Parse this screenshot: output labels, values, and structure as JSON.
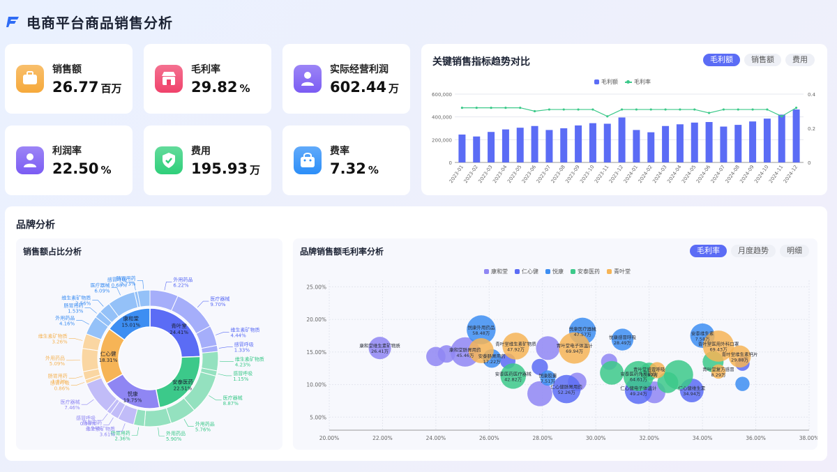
{
  "header": {
    "title": "电商平台商品销售分析"
  },
  "kpis": [
    {
      "label": "销售额",
      "value": "26.77",
      "unit": "百万",
      "icon": "briefcase-icon",
      "color": "#f6a93b"
    },
    {
      "label": "毛利率",
      "value": "29.82",
      "unit": "%",
      "icon": "shop-icon",
      "color": "#f0426b"
    },
    {
      "label": "实际经营利润",
      "value": "602.44",
      "unit": "万",
      "icon": "user-icon",
      "color": "#7b5cf3"
    },
    {
      "label": "利润率",
      "value": "22.50",
      "unit": "%",
      "icon": "user-icon",
      "color": "#7b5cf3"
    },
    {
      "label": "费用",
      "value": "195.93",
      "unit": "万",
      "icon": "shield-icon",
      "color": "#2fcf7a"
    },
    {
      "label": "费率",
      "value": "7.32",
      "unit": "%",
      "icon": "bag-icon",
      "color": "#2c8ef8"
    }
  ],
  "trend": {
    "title": "关键销售指标趋势对比",
    "tabs": [
      "毛利额",
      "销售额",
      "费用"
    ],
    "active_tab": "毛利额",
    "legend": [
      "毛利额",
      "毛利率"
    ]
  },
  "brand": {
    "section_title": "品牌分析",
    "pie_title": "销售额占比分析",
    "scatter_title": "品牌销售额毛利率分析",
    "scatter_tabs": [
      "毛利率",
      "月度趋势",
      "明细"
    ],
    "scatter_active_tab": "毛利率"
  },
  "chart_data": [
    {
      "type": "bar",
      "categories": [
        "2023-01",
        "2023-02",
        "2023-03",
        "2023-04",
        "2023-05",
        "2023-06",
        "2023-07",
        "2023-08",
        "2023-09",
        "2023-10",
        "2023-11",
        "2023-12",
        "2024-01",
        "2024-02",
        "2024-03",
        "2024-04",
        "2024-05",
        "2024-06",
        "2024-07",
        "2024-08",
        "2024-09",
        "2024-10",
        "2024-11",
        "2024-12"
      ],
      "series": [
        {
          "name": "毛利额",
          "type": "bar",
          "axis": "left",
          "color": "#5b6cf5",
          "values": [
            245000,
            228000,
            268000,
            290000,
            305000,
            320000,
            285000,
            300000,
            325000,
            345000,
            340000,
            395000,
            285000,
            265000,
            320000,
            335000,
            350000,
            355000,
            315000,
            330000,
            360000,
            385000,
            420000,
            465000
          ]
        },
        {
          "name": "毛利率",
          "type": "line",
          "axis": "right",
          "color": "#3cc98a",
          "values": [
            0.32,
            0.32,
            0.32,
            0.32,
            0.32,
            0.3,
            0.31,
            0.31,
            0.31,
            0.31,
            0.27,
            0.31,
            0.31,
            0.31,
            0.31,
            0.31,
            0.31,
            0.29,
            0.31,
            0.31,
            0.31,
            0.31,
            0.27,
            0.32
          ]
        }
      ],
      "yticks_left": [
        "0",
        "200,000",
        "400,000",
        "600,000"
      ],
      "yticks_right": [
        "0",
        "0.2",
        "0.4"
      ],
      "ylim_left": [
        0,
        600000
      ],
      "ylim_right": [
        0,
        0.4
      ],
      "grid": true,
      "legend": "top-center"
    },
    {
      "type": "pie",
      "inner_ring": [
        {
          "name": "青叶堂",
          "value": 24.41,
          "color": "#5b6cf5"
        },
        {
          "name": "安泰医药",
          "value": 22.51,
          "color": "#3cc98a"
        },
        {
          "name": "悦康",
          "value": 19.75,
          "color": "#8f86f3"
        },
        {
          "name": "仁心健",
          "value": 18.31,
          "color": "#f6b456"
        },
        {
          "name": "康和堂",
          "value": 15.01,
          "color": "#3d8ef2"
        }
      ],
      "outer_ring": [
        {
          "brand": "青叶堂",
          "name": "外用药品",
          "value": 6.22
        },
        {
          "brand": "青叶堂",
          "name": "医疗器械",
          "value": 9.7
        },
        {
          "brand": "青叶堂",
          "name": "维生素矿物质",
          "value": 4.44
        },
        {
          "brand": "青叶堂",
          "name": "感冒呼吸",
          "value": 1.33
        },
        {
          "brand": "安泰医药",
          "name": "维生素矿物质",
          "value": 4.23
        },
        {
          "brand": "安泰医药",
          "name": "感冒呼吸",
          "value": 1.15
        },
        {
          "brand": "安泰医药",
          "name": "医疗器械",
          "value": 8.87
        },
        {
          "brand": "安泰医药",
          "name": "外用药品",
          "value": 5.76
        },
        {
          "brand": "安泰医药",
          "name": "外用药品",
          "value": 5.9
        },
        {
          "brand": "安泰医药",
          "name": "肠胃用药",
          "value": 2.36
        },
        {
          "brand": "悦康",
          "name": "维生素矿物质",
          "value": 3.61
        },
        {
          "brand": "悦康",
          "name": "肠胃用药",
          "value": 1.94
        },
        {
          "brand": "悦康",
          "name": "感冒呼吸",
          "value": 0.98
        },
        {
          "brand": "悦康",
          "name": "医疗器械",
          "value": 7.46
        },
        {
          "brand": "仁心健",
          "name": "感冒呼吸",
          "value": 0.86
        },
        {
          "brand": "仁心健",
          "name": "肠胃用药",
          "value": 1.83
        },
        {
          "brand": "仁心健",
          "name": "外用药品",
          "value": 5.09
        },
        {
          "brand": "仁心健",
          "name": "维生素矿物质",
          "value": 3.26
        },
        {
          "brand": "康和堂",
          "name": "外用药品",
          "value": 4.16
        },
        {
          "brand": "康和堂",
          "name": "肠胃用药",
          "value": 1.53
        },
        {
          "brand": "康和堂",
          "name": "维生素矿物质",
          "value": 2.56
        },
        {
          "brand": "康和堂",
          "name": "医疗器械",
          "value": 6.09
        },
        {
          "brand": "康和堂",
          "name": "感冒呼吸",
          "value": 0.68
        },
        {
          "brand": "康和堂",
          "name": "肠胃用药",
          "value": 2.73
        }
      ]
    },
    {
      "type": "scatter",
      "x_ticks": [
        "20.00%",
        "22.00%",
        "24.00%",
        "26.00%",
        "28.00%",
        "30.00%",
        "32.00%",
        "34.00%",
        "36.00%",
        "38.00%"
      ],
      "y_ticks": [
        "5.00%",
        "10.00%",
        "15.00%",
        "20.00%",
        "25.00%"
      ],
      "xlim": [
        20,
        38
      ],
      "ylim": [
        3,
        26
      ],
      "grid": true,
      "legend": "top-center",
      "series": [
        {
          "name": "康和堂",
          "color": "#8f86f3",
          "points": [
            {
              "x": 21.9,
              "y": 15.6,
              "v": 30,
              "label": "康和堂维生素矿物质",
              "label2": "26.41万"
            },
            {
              "x": 25.1,
              "y": 15.0,
              "v": 60,
              "label": "康和堂肠胃用药",
              "label2": "45.46万"
            },
            {
              "x": 24.0,
              "y": 14.3,
              "v": 20
            },
            {
              "x": 24.4,
              "y": 14.7,
              "v": 15
            },
            {
              "x": 28.2,
              "y": 15.6,
              "v": 35
            },
            {
              "x": 27.9,
              "y": 8.6,
              "v": 40
            },
            {
              "x": 29.3,
              "y": 10.4,
              "v": 18
            },
            {
              "x": 30.5,
              "y": 13.5,
              "v": 12
            },
            {
              "x": 32.2,
              "y": 8.8,
              "v": 28
            }
          ]
        },
        {
          "name": "仁心健",
          "color": "#5b6cf5",
          "points": [
            {
              "x": 28.9,
              "y": 9.3,
              "v": 55,
              "label": "仁心健肠胃用药",
              "label2": "52.26万"
            },
            {
              "x": 31.6,
              "y": 9.1,
              "v": 50,
              "label": "仁心健电子体温计",
              "label2": "49.24万"
            },
            {
              "x": 33.6,
              "y": 9.1,
              "v": 35,
              "label": "仁心健维生素",
              "label2": "34.94万"
            },
            {
              "x": 26.7,
              "y": 13.6,
              "v": 10
            },
            {
              "x": 27.9,
              "y": 12.7,
              "v": 12
            },
            {
              "x": 35.5,
              "y": 13.2,
              "v": 8
            }
          ]
        },
        {
          "name": "悦康",
          "color": "#3d8ef2",
          "points": [
            {
              "x": 25.7,
              "y": 18.4,
              "v": 58,
              "label": "悦康外用药品",
              "label2": "58.48万"
            },
            {
              "x": 29.5,
              "y": 18.2,
              "v": 48,
              "label": "悦康医疗器械",
              "label2": "47.57万"
            },
            {
              "x": 31.0,
              "y": 16.9,
              "v": 28,
              "label": "悦康感冒呼吸",
              "label2": "28.49万"
            },
            {
              "x": 34.0,
              "y": 17.5,
              "v": 38,
              "label": "安泰维生素",
              "label2": "7.58万"
            },
            {
              "x": 26.1,
              "y": 14.0,
              "v": 18,
              "label": "安泰肠胃用药",
              "label2": "17.22万"
            },
            {
              "x": 28.2,
              "y": 11.0,
              "v": 10,
              "label": "悦康胶囊",
              "label2": "7.51万"
            },
            {
              "x": 35.5,
              "y": 10.1,
              "v": 8
            }
          ]
        },
        {
          "name": "安泰医药",
          "color": "#3cc98a",
          "points": [
            {
              "x": 26.9,
              "y": 11.3,
              "v": 42,
              "label": "安泰医药医疗器械",
              "label2": "42.82万"
            },
            {
              "x": 31.6,
              "y": 11.3,
              "v": 64,
              "label": "安泰医药外用药品",
              "label2": "64.61万"
            },
            {
              "x": 32.0,
              "y": 12.0,
              "v": 16,
              "label": "青叶堂感冒呼吸",
              "label2": "15.97万"
            },
            {
              "x": 30.6,
              "y": 11.8,
              "v": 35
            },
            {
              "x": 33.1,
              "y": 11.5,
              "v": 60
            },
            {
              "x": 32.7,
              "y": 10.3,
              "v": 25
            },
            {
              "x": 34.4,
              "y": 13.5,
              "v": 25
            }
          ]
        },
        {
          "name": "青叶堂",
          "color": "#f6b456",
          "points": [
            {
              "x": 27.0,
              "y": 15.9,
              "v": 48,
              "label": "青叶堂维生素矿物质",
              "label2": "47.92万"
            },
            {
              "x": 29.2,
              "y": 15.6,
              "v": 70,
              "label": "青叶堂电子体温计",
              "label2": "69.94万"
            },
            {
              "x": 34.6,
              "y": 15.9,
              "v": 69,
              "label": "青叶堂医用外科口罩",
              "label2": "69.43万"
            },
            {
              "x": 35.4,
              "y": 14.3,
              "v": 29,
              "label": "青叶堂维生素钙片",
              "label2": "29.88万"
            },
            {
              "x": 34.6,
              "y": 12.0,
              "v": 8,
              "label": "青叶堂复方感冒",
              "label2": "8.29万"
            },
            {
              "x": 25.7,
              "y": 15.2,
              "v": 40
            },
            {
              "x": 32.3,
              "y": 12.2,
              "v": 12
            }
          ]
        }
      ]
    }
  ]
}
